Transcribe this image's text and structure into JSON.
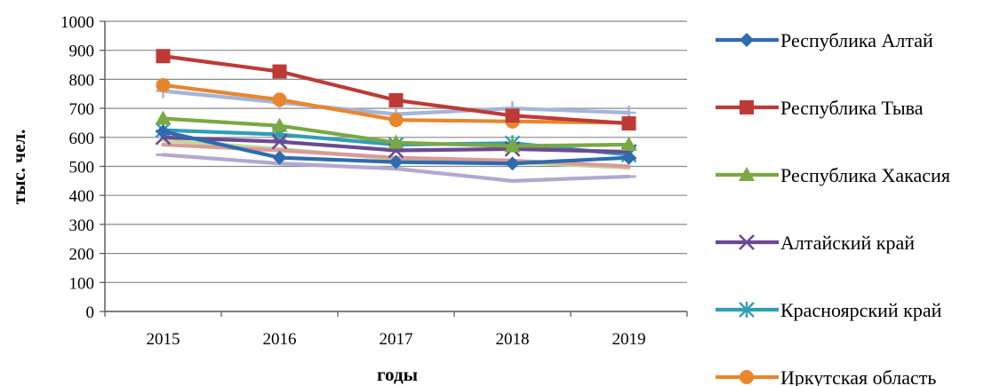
{
  "chart_data": {
    "type": "line",
    "title": "",
    "xlabel": "годы",
    "ylabel": "тыс. чел.",
    "ylim": [
      0,
      1000
    ],
    "y_ticks": [
      "0",
      "100",
      "200",
      "300",
      "400",
      "500",
      "600",
      "700",
      "800",
      "900",
      "1000"
    ],
    "categories": [
      "2015",
      "2016",
      "2017",
      "2018",
      "2019"
    ],
    "grid": "horizontal",
    "legend_position": "right",
    "series": [
      {
        "name": "Республика Алтай",
        "color": "#2e6bb0",
        "marker": "diamond",
        "values": [
          620,
          530,
          515,
          510,
          530
        ]
      },
      {
        "name": "Республика Тыва",
        "color": "#be3a36",
        "marker": "square",
        "values": [
          880,
          827,
          728,
          675,
          648
        ]
      },
      {
        "name": "Республика Хакасия",
        "color": "#7aa845",
        "marker": "triangle",
        "values": [
          665,
          640,
          582,
          570,
          575
        ]
      },
      {
        "name": "Алтайский край",
        "color": "#6b4a93",
        "marker": "x",
        "values": [
          600,
          585,
          555,
          560,
          550
        ]
      },
      {
        "name": "Красноярский край",
        "color": "#2f9fb5",
        "marker": "asterisk",
        "values": [
          625,
          610,
          575,
          580,
          540
        ]
      },
      {
        "name": "Иркутская область",
        "color": "#e8862d",
        "marker": "circle",
        "values": [
          780,
          730,
          660,
          655,
          650
        ]
      },
      {
        "name": "",
        "color": "#a3b5d9",
        "marker": "plus",
        "values": [
          760,
          720,
          680,
          700,
          685
        ]
      },
      {
        "name": "",
        "color": "#d99b98",
        "marker": "none",
        "values": [
          575,
          555,
          530,
          520,
          500
        ]
      },
      {
        "name": "",
        "color": "#c4d99b",
        "marker": "none",
        "values": [
          590,
          560,
          525,
          515,
          495
        ]
      },
      {
        "name": "",
        "color": "#b4a7d0",
        "marker": "dash",
        "values": [
          540,
          510,
          492,
          450,
          465
        ]
      }
    ]
  }
}
